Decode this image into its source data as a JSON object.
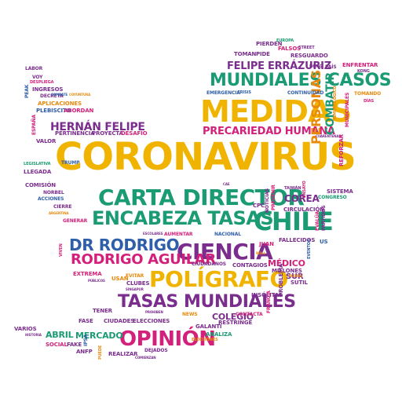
{
  "palette": {
    "gold": "#f0b400",
    "green": "#1a9b74",
    "purple": "#7b2d8e",
    "pink": "#d3217b",
    "blue": "#2f5fa8",
    "orange": "#e8890c"
  },
  "words": {
    "coronavirus": "CORONAVIRUS",
    "medidas": "MEDIDAS",
    "carta_director": "CARTA DIRECTOR",
    "encabeza_tasas": "ENCABEZA TASAS",
    "chile": "CHILE",
    "mundiales_casos": "MUNDIALES CASOS",
    "poligrafo": "POLÍGRAFO",
    "ciencia": "CIENCIA",
    "tasas_mundiales": "TASAS MUNDIALES",
    "opinion": "OPINIÓN",
    "dr_rodrigo": "DR RODRIGO",
    "rodrigo_aguilar": "RODRIGO AGUILAR",
    "felipe_errazuriz": "FELIPE ERRÁZURIZ",
    "precariedad_humana": "PRECARIEDAD HUMANA",
    "hernan_felipe": "HERNÁN FELIPE",
    "personas": "PERSONAS",
    "combatir": "COMBATIR",
    "corea": "COREA",
    "colegio": "COLEGIO",
    "medico": "MÉDICO",
    "mercado": "MERCADO",
    "abril": "ABRIL",
    "toman": "TOMAN",
    "pide": "PIDE",
    "pierden": "PIERDEN",
    "falsos": "FALSOS",
    "resguardo": "RESGUARDO",
    "europa": "EUROPA",
    "street": "STREET",
    "hong": "HONG",
    "pais": "PAÍS",
    "enfrentar": "ENFRENTAR",
    "kong": "KONG",
    "tomando": "TOMANDO",
    "dias": "DÍAS",
    "labor": "LABOR",
    "voy": "VOY",
    "despliega": "DESPLIEGA",
    "ingresos": "INGRESOS",
    "decreta": "DECRETA",
    "combate": "COMBATE",
    "coyuntura": "COYUNTURA",
    "emergencia": "EMERGENCIA",
    "crisis": "CRISIS",
    "continuidad": "CONTINUIDAD",
    "aplicaciones": "APLICACIONES",
    "plebiscito": "PLEBISCITO",
    "abordan": "ABORDAN",
    "espana": "ESPAÑA",
    "pertinencia": "PERTINENCIA",
    "proyecta": "PROYECTA",
    "desafio": "DESAFÍO",
    "valor": "VALOR",
    "peak": "PEAK",
    "inmunologico": "INMUNOLÓGICO",
    "municipales": "MUNICIPALES",
    "cuarentenas": "CUARENTENAS",
    "reforzar": "REFORZAR",
    "legislativa": "LEGISLATIVA",
    "trump": "TRUMP",
    "llegada": "LLEGADA",
    "comision": "COMISIÓN",
    "norbel": "NORBEL",
    "acciones": "ACCIONES",
    "cierre": "CIERRE",
    "argentina": "ARGENTINA",
    "generar": "GENERAR",
    "cae": "CAE",
    "noticias": "NOTICIAS",
    "prevenir": "PREVENIR",
    "cpc": "CPC",
    "taiwan": "TAIWÁN",
    "ensayo": "ENSAYO",
    "sistema": "SISTEMA",
    "congreso": "CONGRESO",
    "circulacion": "CIRCULACIÓN",
    "evalua": "EVALÚA",
    "partidos": "PARTIDOS",
    "escolares": "ESCOLARES",
    "aumentar": "AUMENTAR",
    "nacional": "NACIONAL",
    "fallecidos": "FALLECIDOS",
    "us": "US",
    "juan": "JUAN",
    "wall": "WALL",
    "eventos": "EVENTOS",
    "viven": "VIVEN",
    "ciudadanos": "CIUDADANOS",
    "contagios": "CONTAGIOS",
    "millones": "MILLONES",
    "sutil": "SUTIL",
    "extrema": "EXTREMA",
    "usan": "USAN",
    "evitar": "EVITAR",
    "publicos": "PÚBLICOS",
    "clubes": "CLUBES",
    "singapur": "SINGAPUR",
    "sur": "SUR",
    "peores": "PEORES",
    "insolitas": "INSÓLITAS",
    "problema": "PROBLEMA",
    "tener": "TENER",
    "prohiben": "PROHIBEN",
    "news": "NEWS",
    "contacta": "CONTACTA",
    "francia": "FRANCIA",
    "fase": "FASE",
    "ciudades": "CIUDADES",
    "elecciones": "ELECCIONES",
    "restringe": "RESTRINGE",
    "varios": "VARIOS",
    "historia": "HISTORIA",
    "galanti": "GALANTI",
    "analiza": "ANALIZA",
    "social": "SOCIAL",
    "fake": "FAKE",
    "ipsa": "IPSA",
    "anfp": "ANFP",
    "puede": "PUEDE",
    "realizar": "REALIZAR",
    "comienzan": "COMIENZAN",
    "dejados": "DEJADOS"
  }
}
